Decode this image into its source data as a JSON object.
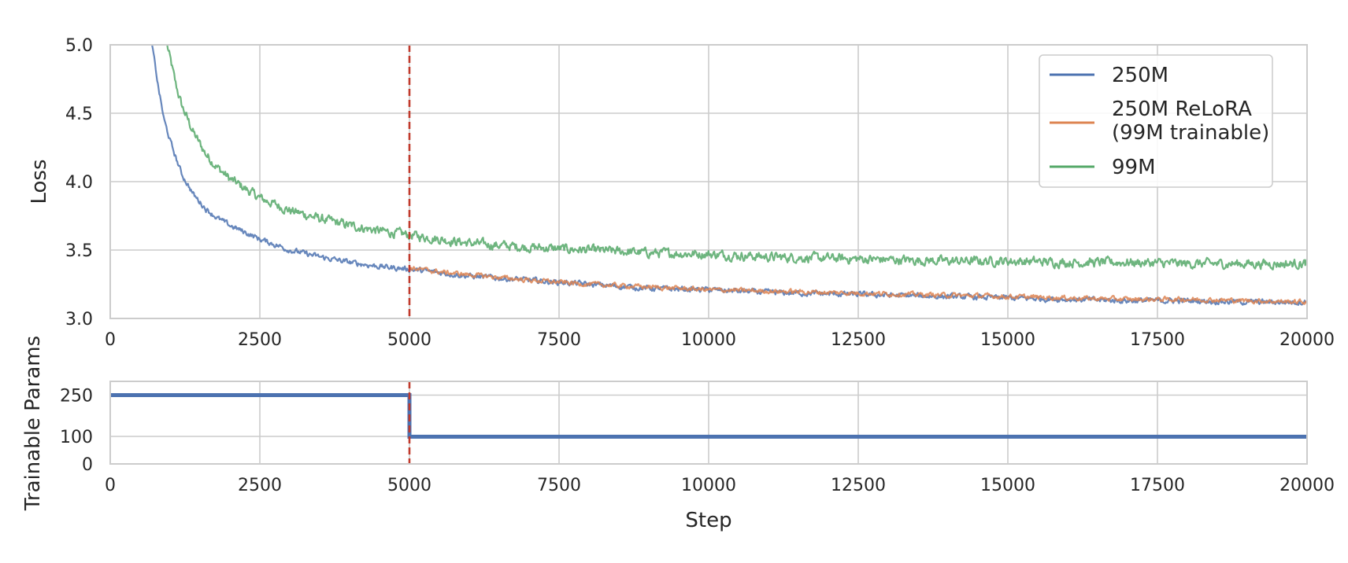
{
  "chart_data": [
    {
      "type": "line",
      "ylabel": "Loss",
      "xlim": [
        0,
        20000
      ],
      "ylim": [
        3.0,
        5.0
      ],
      "xticks": [
        "0",
        "2500",
        "5000",
        "7500",
        "10000",
        "12500",
        "15000",
        "17500",
        "20000"
      ],
      "yticks": [
        "3.0",
        "3.5",
        "4.0",
        "4.5",
        "5.0"
      ],
      "grid": true,
      "legend_position": "top-right",
      "vline": {
        "x": 5000,
        "color": "#c0392b",
        "style": "dashed"
      },
      "series": [
        {
          "name": "250M",
          "color": "#4c72b0",
          "x": [
            700,
            800,
            900,
            1000,
            1100,
            1200,
            1400,
            1600,
            1800,
            2000,
            2500,
            3000,
            3500,
            4000,
            4500,
            5000,
            6000,
            7000,
            8000,
            9000,
            10000,
            11000,
            12000,
            13000,
            14000,
            15000,
            16000,
            17000,
            18000,
            19000,
            20000
          ],
          "y": [
            5.0,
            4.7,
            4.45,
            4.3,
            4.17,
            4.05,
            3.9,
            3.8,
            3.73,
            3.68,
            3.58,
            3.5,
            3.45,
            3.41,
            3.38,
            3.36,
            3.31,
            3.28,
            3.25,
            3.22,
            3.21,
            3.19,
            3.18,
            3.17,
            3.16,
            3.15,
            3.14,
            3.13,
            3.13,
            3.12,
            3.12
          ]
        },
        {
          "name": "250M ReLoRA\n(99M trainable)",
          "color": "#dd8452",
          "x": [
            5000,
            5500,
            6000,
            7000,
            8000,
            9000,
            10000,
            11000,
            12000,
            13000,
            14000,
            15000,
            16000,
            17000,
            18000,
            19000,
            20000
          ],
          "y": [
            3.37,
            3.34,
            3.32,
            3.28,
            3.25,
            3.23,
            3.21,
            3.2,
            3.19,
            3.18,
            3.17,
            3.16,
            3.15,
            3.14,
            3.14,
            3.13,
            3.12
          ]
        },
        {
          "name": "99M",
          "color": "#55a868",
          "x": [
            950,
            1000,
            1100,
            1200,
            1400,
            1600,
            1800,
            2000,
            2500,
            3000,
            3500,
            4000,
            4500,
            5000,
            6000,
            7000,
            8000,
            9000,
            10000,
            11000,
            12000,
            13000,
            14000,
            15000,
            16000,
            17000,
            18000,
            19000,
            20000
          ],
          "y": [
            5.0,
            4.9,
            4.7,
            4.55,
            4.35,
            4.2,
            4.1,
            4.02,
            3.88,
            3.79,
            3.73,
            3.68,
            3.64,
            3.61,
            3.55,
            3.52,
            3.5,
            3.48,
            3.47,
            3.45,
            3.44,
            3.43,
            3.42,
            3.42,
            3.41,
            3.41,
            3.4,
            3.4,
            3.4
          ]
        }
      ]
    },
    {
      "type": "line",
      "ylabel": "Trainable Params",
      "xlabel": "Step",
      "xlim": [
        0,
        20000
      ],
      "ylim": [
        0,
        300
      ],
      "xticks": [
        "0",
        "2500",
        "5000",
        "7500",
        "10000",
        "12500",
        "15000",
        "17500",
        "20000"
      ],
      "yticks": [
        "0",
        "100",
        "250"
      ],
      "grid": true,
      "vline": {
        "x": 5000,
        "color": "#c0392b",
        "style": "dashed"
      },
      "series": [
        {
          "color": "#4c72b0",
          "x": [
            0,
            5000,
            5000,
            20000
          ],
          "y": [
            250,
            250,
            99,
            99
          ]
        }
      ]
    }
  ]
}
